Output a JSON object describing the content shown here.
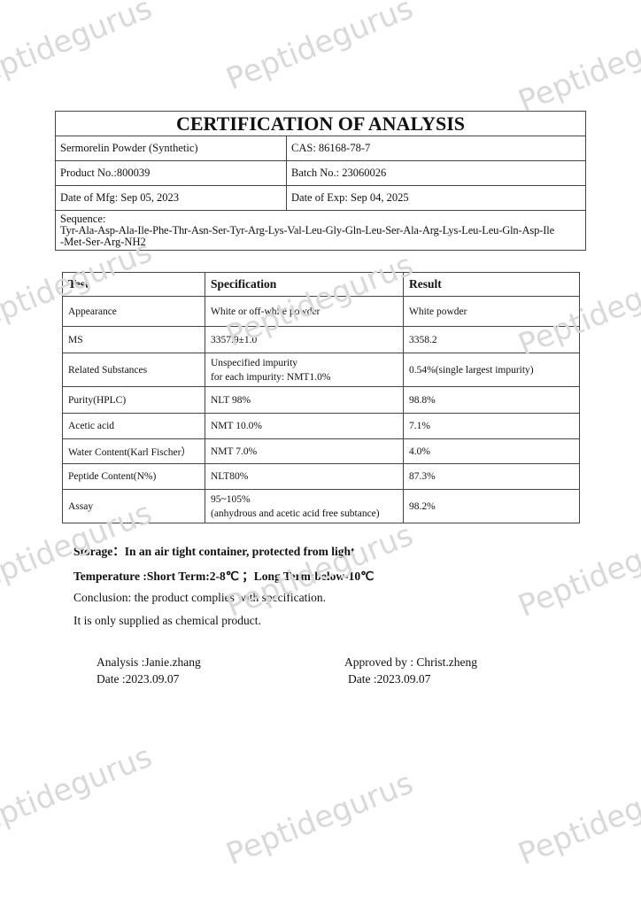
{
  "watermark": "Peptidegurus",
  "header": {
    "title": "CERTIFICATION OF ANALYSIS",
    "product_name": "Sermorelin Powder (Synthetic)",
    "cas": "CAS: 86168-78-7",
    "product_no": "Product No.:800039",
    "batch_no": "Batch No.: 23060026",
    "date_mfg": "Date of Mfg: Sep 05, 2023",
    "date_exp": "Date of Exp: Sep 04, 2025",
    "sequence_label": "Sequence:",
    "sequence_line1": "Tyr-Ala-Asp-Ala-Ile-Phe-Thr-Asn-Ser-Tyr-Arg-Lys-Val-Leu-Gly-Gln-Leu-Ser-Ala-Arg-Lys-Leu-Leu-Gln-Asp-Ile",
    "sequence_line2": "-Met-Ser-Arg-NH2"
  },
  "tests": {
    "headers": [
      "Test",
      "Specification",
      "Result"
    ],
    "rows": [
      {
        "test": "Appearance",
        "spec": "White or off-white powder",
        "spec2": "",
        "result": "White powder"
      },
      {
        "test": "MS",
        "spec": "3357.9±1.0",
        "spec2": "",
        "result": "3358.2"
      },
      {
        "test": "Related Substances",
        "spec": "Unspecified impurity",
        "spec2": "for each impurity: NMT1.0%",
        "result": "0.54%(single largest impurity)"
      },
      {
        "test": "Purity(HPLC)",
        "spec": "NLT 98%",
        "spec2": "",
        "result": "98.8%"
      },
      {
        "test": "Acetic acid",
        "spec": "NMT 10.0%",
        "spec2": "",
        "result": "7.1%"
      },
      {
        "test": "Water Content(Karl Fischer）",
        "spec": "NMT 7.0%",
        "spec2": "",
        "result": "4.0%"
      },
      {
        "test": "Peptide Content(N%)",
        "spec": "NLT80%",
        "spec2": "",
        "result": "87.3%"
      },
      {
        "test": "Assay",
        "spec": "95~105%",
        "spec2": "(anhydrous and acetic acid free subtance)",
        "result": "98.2%"
      }
    ]
  },
  "notes": {
    "storage": "Storage：In an air tight container, protected from light",
    "temperature": "Temperature :Short Term:2-8℃ ；Long Term:below-10℃",
    "conclusion": "Conclusion: the product complies with specification.",
    "supply": "It is only supplied as chemical product."
  },
  "signatures": {
    "analysis": "Analysis :Janie.zhang",
    "analysis_date": "Date :2023.09.07",
    "approved": "Approved by : Christ.zheng",
    "approved_date": "Date :2023.09.07"
  }
}
